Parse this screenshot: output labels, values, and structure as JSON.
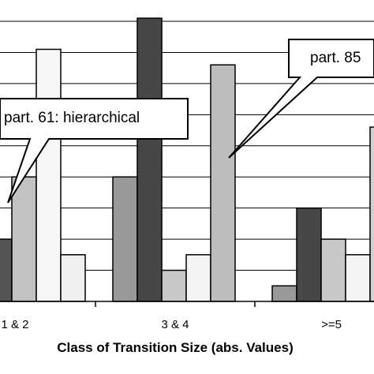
{
  "chart_data": {
    "type": "bar",
    "xlabel": "Class of Transition Size (abs. Values)",
    "ylabel": "",
    "categories": [
      "1 & 2",
      "3 & 4",
      ">=5"
    ],
    "ylim": [
      0,
      9
    ],
    "grid": true,
    "series": [
      {
        "fill": "#555555",
        "values": [
          2.0,
          null,
          null
        ]
      },
      {
        "fill": "#c2c2c2",
        "values": [
          4.0,
          null,
          null
        ]
      },
      {
        "fill": "#f6f6f6",
        "values": [
          8.1,
          null,
          null
        ]
      },
      {
        "fill": "#f0f0f0",
        "values": [
          1.5,
          null,
          null
        ]
      },
      {
        "fill": "#999999",
        "values": [
          null,
          4.0,
          0.5
        ]
      },
      {
        "fill": "#474747",
        "values": [
          null,
          9.1,
          3.0
        ]
      },
      {
        "fill": "#c8c8c8",
        "values": [
          null,
          1.0,
          2.0
        ]
      },
      {
        "fill": "#f4f4f4",
        "values": [
          null,
          1.5,
          1.5
        ]
      },
      {
        "fill": "#bdbdbd",
        "values": [
          null,
          7.6,
          null
        ]
      },
      {
        "fill": "#d0d0d0",
        "values": [
          null,
          null,
          5.6
        ]
      }
    ],
    "annotations": [
      "part. 61: hierarchical",
      "part. 85"
    ]
  }
}
